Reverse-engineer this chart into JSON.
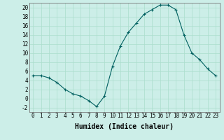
{
  "x": [
    0,
    1,
    2,
    3,
    4,
    5,
    6,
    7,
    8,
    9,
    10,
    11,
    12,
    13,
    14,
    15,
    16,
    17,
    18,
    19,
    20,
    21,
    22,
    23
  ],
  "y": [
    5,
    5,
    4.5,
    3.5,
    2,
    1,
    0.5,
    -0.5,
    -1.8,
    0.5,
    7,
    11.5,
    14.5,
    16.5,
    18.5,
    19.5,
    20.5,
    20.5,
    19.5,
    14,
    10,
    8.5,
    6.5,
    5
  ],
  "line_color": "#006060",
  "marker": "+",
  "marker_color": "#006060",
  "bg_color": "#cceee8",
  "grid_color": "#aaddcc",
  "xlabel": "Humidex (Indice chaleur)",
  "xlim": [
    -0.5,
    23.5
  ],
  "ylim": [
    -3,
    21
  ],
  "yticks": [
    -2,
    0,
    2,
    4,
    6,
    8,
    10,
    12,
    14,
    16,
    18,
    20
  ],
  "xticks": [
    0,
    1,
    2,
    3,
    4,
    5,
    6,
    7,
    8,
    9,
    10,
    11,
    12,
    13,
    14,
    15,
    16,
    17,
    18,
    19,
    20,
    21,
    22,
    23
  ],
  "xlabel_fontsize": 7,
  "tick_fontsize": 5.5
}
